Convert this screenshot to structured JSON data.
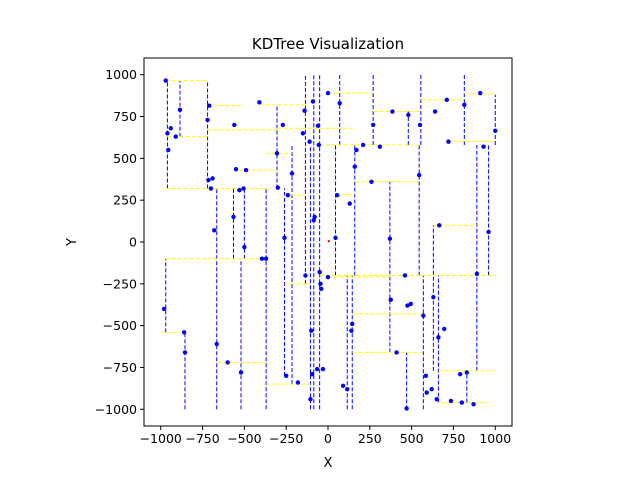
{
  "chart_data": {
    "type": "scatter",
    "title": "KDTree Visualization",
    "xlabel": "X",
    "ylabel": "Y",
    "xlim": [
      -1100,
      1100
    ],
    "ylim": [
      -1100,
      1100
    ],
    "xticks": [
      -1000,
      -750,
      -500,
      -250,
      0,
      250,
      500,
      750,
      1000
    ],
    "yticks": [
      -1000,
      -750,
      -500,
      -250,
      0,
      250,
      500,
      750,
      1000
    ],
    "xtick_labels": [
      "−1000",
      "−750",
      "−500",
      "−250",
      "0",
      "250",
      "500",
      "750",
      "1000"
    ],
    "ytick_labels": [
      "−1000",
      "−750",
      "−500",
      "−250",
      "0",
      "250",
      "500",
      "750",
      "1000"
    ],
    "grid": false,
    "colors": {
      "points": "#0000ff",
      "vertical_splits": "#0000ff",
      "horizontal_splits": "#ffff00",
      "query_point": "#ff0000"
    },
    "query_point": [
      5,
      5
    ],
    "points": [
      [
        -970,
        965
      ],
      [
        -960,
        650
      ],
      [
        -955,
        550
      ],
      [
        -940,
        680
      ],
      [
        -910,
        630
      ],
      [
        -885,
        790
      ],
      [
        -980,
        -400
      ],
      [
        -860,
        -540
      ],
      [
        -855,
        -660
      ],
      [
        -720,
        730
      ],
      [
        -715,
        370
      ],
      [
        -710,
        815
      ],
      [
        -700,
        320
      ],
      [
        -690,
        380
      ],
      [
        -680,
        70
      ],
      [
        -665,
        -610
      ],
      [
        -600,
        -720
      ],
      [
        -565,
        150
      ],
      [
        -560,
        700
      ],
      [
        -550,
        435
      ],
      [
        -530,
        310
      ],
      [
        -520,
        -780
      ],
      [
        -505,
        320
      ],
      [
        -500,
        -30
      ],
      [
        -490,
        430
      ],
      [
        -410,
        835
      ],
      [
        -395,
        -100
      ],
      [
        -370,
        -100
      ],
      [
        -305,
        530
      ],
      [
        -300,
        325
      ],
      [
        -270,
        700
      ],
      [
        -260,
        25
      ],
      [
        -250,
        -800
      ],
      [
        -240,
        280
      ],
      [
        -215,
        410
      ],
      [
        -180,
        -840
      ],
      [
        -150,
        650
      ],
      [
        -140,
        785
      ],
      [
        -135,
        -200
      ],
      [
        -110,
        600
      ],
      [
        -105,
        -940
      ],
      [
        -100,
        -530
      ],
      [
        -95,
        -790
      ],
      [
        -90,
        840
      ],
      [
        -85,
        130
      ],
      [
        -80,
        150
      ],
      [
        -65,
        -760
      ],
      [
        -60,
        695
      ],
      [
        -55,
        580
      ],
      [
        -50,
        -180
      ],
      [
        -45,
        -250
      ],
      [
        -40,
        -280
      ],
      [
        -30,
        -760
      ],
      [
        0,
        -210
      ],
      [
        0,
        890
      ],
      [
        45,
        25
      ],
      [
        55,
        280
      ],
      [
        70,
        830
      ],
      [
        90,
        -860
      ],
      [
        115,
        -880
      ],
      [
        130,
        230
      ],
      [
        140,
        -530
      ],
      [
        145,
        -490
      ],
      [
        160,
        450
      ],
      [
        170,
        550
      ],
      [
        210,
        580
      ],
      [
        260,
        360
      ],
      [
        270,
        700
      ],
      [
        310,
        570
      ],
      [
        370,
        20
      ],
      [
        375,
        -345
      ],
      [
        385,
        780
      ],
      [
        410,
        -660
      ],
      [
        460,
        -200
      ],
      [
        470,
        -995
      ],
      [
        475,
        -380
      ],
      [
        480,
        760
      ],
      [
        495,
        -370
      ],
      [
        545,
        400
      ],
      [
        550,
        700
      ],
      [
        570,
        -440
      ],
      [
        585,
        -800
      ],
      [
        590,
        -900
      ],
      [
        620,
        -880
      ],
      [
        630,
        -330
      ],
      [
        640,
        780
      ],
      [
        650,
        -940
      ],
      [
        660,
        -570
      ],
      [
        665,
        100
      ],
      [
        695,
        -520
      ],
      [
        710,
        850
      ],
      [
        720,
        600
      ],
      [
        735,
        -950
      ],
      [
        790,
        -790
      ],
      [
        800,
        -960
      ],
      [
        815,
        820
      ],
      [
        830,
        -780
      ],
      [
        870,
        -970
      ],
      [
        890,
        -190
      ],
      [
        910,
        890
      ],
      [
        930,
        570
      ],
      [
        960,
        60
      ],
      [
        1000,
        665
      ]
    ],
    "vertical_splits": [
      {
        "x": -970,
        "y": [
          -540,
          -100
        ]
      },
      {
        "x": -960,
        "y": [
          320,
          965
        ]
      },
      {
        "x": -885,
        "y": [
          630,
          965
        ]
      },
      {
        "x": -855,
        "y": [
          -1000,
          -540
        ]
      },
      {
        "x": -720,
        "y": [
          320,
          965
        ]
      },
      {
        "x": -665,
        "y": [
          -1000,
          320
        ]
      },
      {
        "x": -565,
        "y": [
          -100,
          320
        ]
      },
      {
        "x": -520,
        "y": [
          -1000,
          -100
        ]
      },
      {
        "x": -500,
        "y": [
          -100,
          320
        ]
      },
      {
        "x": -370,
        "y": [
          -1000,
          320
        ]
      },
      {
        "x": -305,
        "y": [
          320,
          820
        ]
      },
      {
        "x": -260,
        "y": [
          -800,
          320
        ]
      },
      {
        "x": -215,
        "y": [
          -850,
          580
        ]
      },
      {
        "x": -135,
        "y": [
          -250,
          1000
        ]
      },
      {
        "x": -105,
        "y": [
          -1000,
          580
        ]
      },
      {
        "x": -85,
        "y": [
          -1000,
          1000
        ]
      },
      {
        "x": -50,
        "y": [
          -1000,
          1000
        ]
      },
      {
        "x": 45,
        "y": [
          -200,
          580
        ]
      },
      {
        "x": 70,
        "y": [
          580,
          1000
        ]
      },
      {
        "x": 115,
        "y": [
          -1000,
          -200
        ]
      },
      {
        "x": 145,
        "y": [
          -1000,
          -200
        ]
      },
      {
        "x": 160,
        "y": [
          -200,
          580
        ]
      },
      {
        "x": 270,
        "y": [
          580,
          1000
        ]
      },
      {
        "x": 370,
        "y": [
          -660,
          360
        ]
      },
      {
        "x": 470,
        "y": [
          -1000,
          -660
        ]
      },
      {
        "x": 480,
        "y": [
          580,
          780
        ]
      },
      {
        "x": 545,
        "y": [
          -200,
          580
        ]
      },
      {
        "x": 555,
        "y": [
          580,
          1000
        ]
      },
      {
        "x": 570,
        "y": [
          -1000,
          -200
        ]
      },
      {
        "x": 630,
        "y": [
          -770,
          100
        ]
      },
      {
        "x": 660,
        "y": [
          -960,
          -200
        ]
      },
      {
        "x": 815,
        "y": [
          580,
          1000
        ]
      },
      {
        "x": 830,
        "y": [
          -960,
          -770
        ]
      },
      {
        "x": 890,
        "y": [
          -770,
          580
        ]
      },
      {
        "x": 960,
        "y": [
          -200,
          580
        ]
      },
      {
        "x": 1000,
        "y": [
          580,
          880
        ]
      }
    ],
    "horizontal_splits": [
      {
        "y": 965,
        "x": [
          -970,
          -720
        ]
      },
      {
        "y": 630,
        "x": [
          -960,
          -720
        ]
      },
      {
        "y": 320,
        "x": [
          -970,
          -370
        ]
      },
      {
        "y": -100,
        "x": [
          -970,
          -370
        ]
      },
      {
        "y": -540,
        "x": [
          -970,
          -855
        ]
      },
      {
        "y": 815,
        "x": [
          -720,
          -500
        ]
      },
      {
        "y": 430,
        "x": [
          -565,
          -305
        ]
      },
      {
        "y": -720,
        "x": [
          -665,
          -370
        ]
      },
      {
        "y": 820,
        "x": [
          -410,
          -135
        ]
      },
      {
        "y": 530,
        "x": [
          -370,
          -215
        ]
      },
      {
        "y": 670,
        "x": [
          -720,
          -305
        ]
      },
      {
        "y": 680,
        "x": [
          -305,
          160
        ]
      },
      {
        "y": 280,
        "x": [
          -260,
          -135
        ]
      },
      {
        "y": -250,
        "x": [
          -260,
          -105
        ]
      },
      {
        "y": -850,
        "x": [
          -370,
          -105
        ]
      },
      {
        "y": 890,
        "x": [
          0,
          270
        ]
      },
      {
        "y": 580,
        "x": [
          -50,
          545
        ]
      },
      {
        "y": 285,
        "x": [
          45,
          160
        ]
      },
      {
        "y": -200,
        "x": [
          -50,
          1000
        ]
      },
      {
        "y": -210,
        "x": [
          0,
          370
        ]
      },
      {
        "y": -430,
        "x": [
          145,
          570
        ]
      },
      {
        "y": -660,
        "x": [
          145,
          570
        ]
      },
      {
        "y": 780,
        "x": [
          270,
          555
        ]
      },
      {
        "y": 360,
        "x": [
          160,
          545
        ]
      },
      {
        "y": 850,
        "x": [
          555,
          815
        ]
      },
      {
        "y": 885,
        "x": [
          815,
          1000
        ]
      },
      {
        "y": 600,
        "x": [
          720,
          1000
        ]
      },
      {
        "y": 100,
        "x": [
          630,
          890
        ]
      },
      {
        "y": -770,
        "x": [
          660,
          1000
        ]
      },
      {
        "y": -960,
        "x": [
          660,
          960
        ]
      }
    ]
  }
}
